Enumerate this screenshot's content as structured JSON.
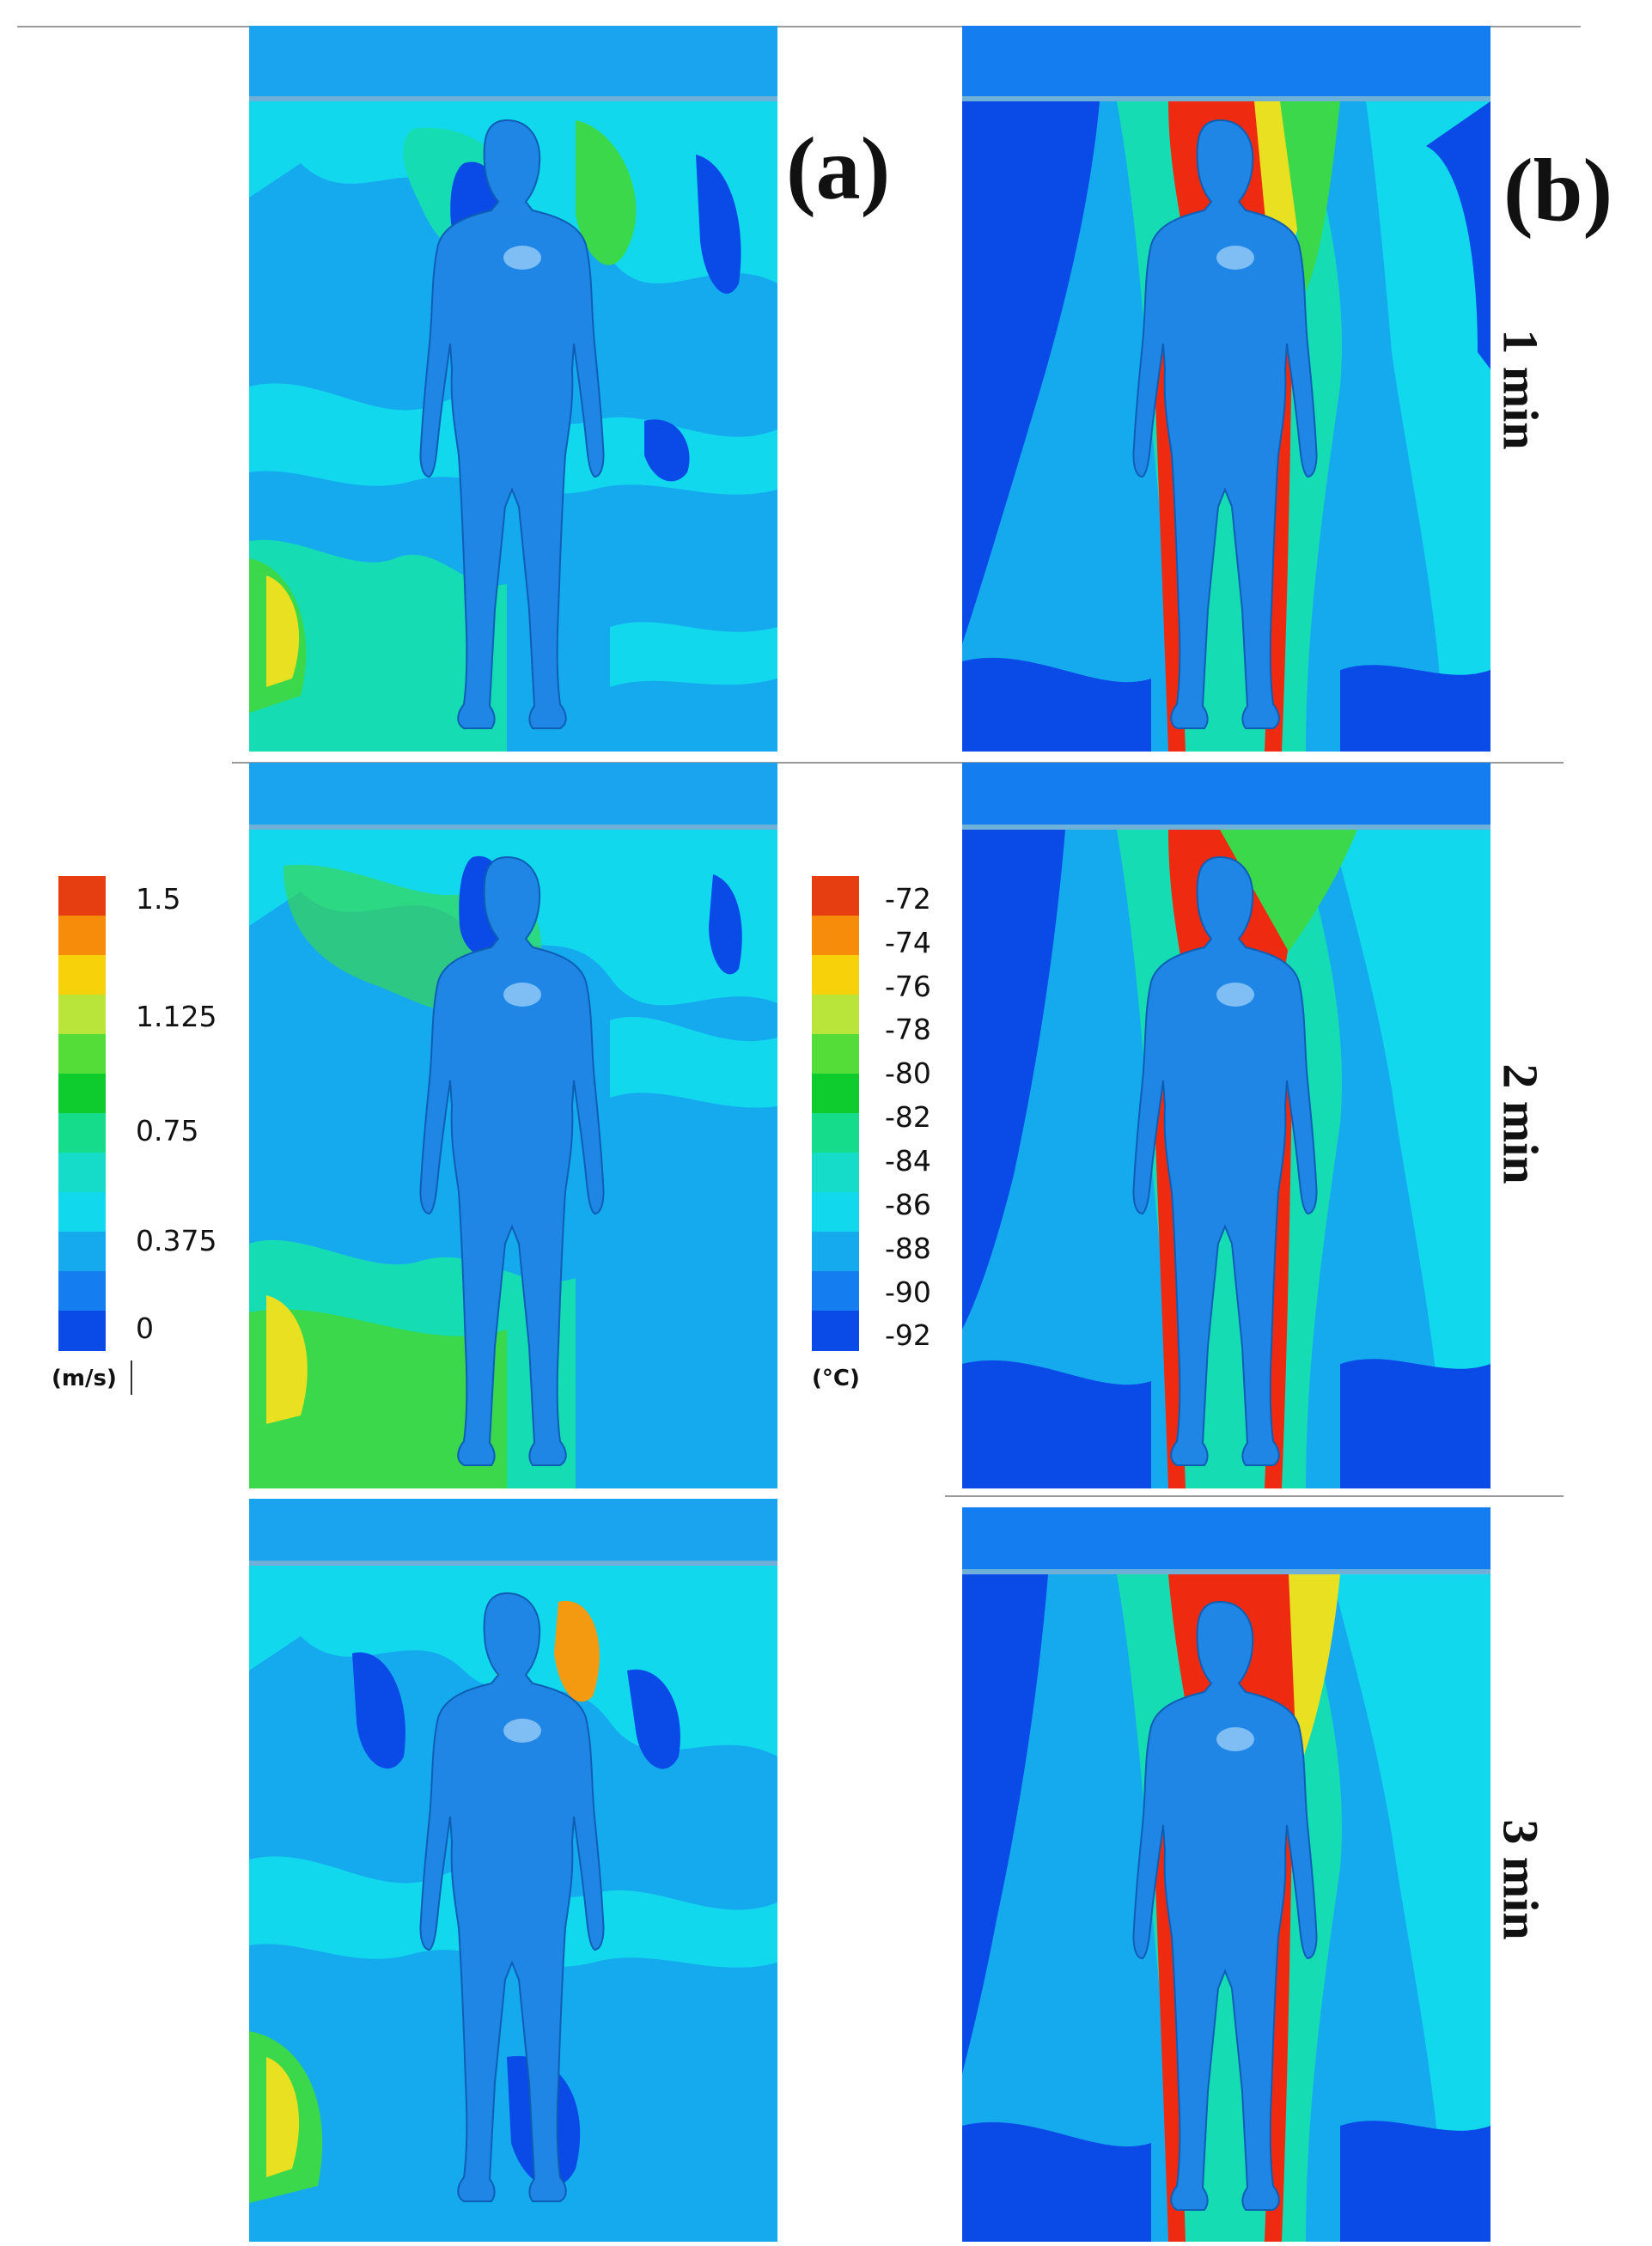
{
  "panel_labels": {
    "a": "(a)",
    "b": "(b)"
  },
  "time_labels": [
    "1 min",
    "2 min",
    "3 min"
  ],
  "velocity_legend": {
    "unit": "(m/s)",
    "tick_labels": [
      "1.5",
      "1.125",
      "0.75",
      "0.375",
      "0"
    ],
    "colors": [
      "#e63e10",
      "#f68c0a",
      "#f7d20a",
      "#b9e43a",
      "#54dd39",
      "#0fcc2e",
      "#14dc8a",
      "#14dcc8",
      "#12d8ee",
      "#15aaee",
      "#147df0",
      "#0a4ae6"
    ]
  },
  "temperature_legend": {
    "unit": "(°C)",
    "tick_labels": [
      "-72",
      "-74",
      "-76",
      "-78",
      "-80",
      "-82",
      "-84",
      "-86",
      "-88",
      "-90",
      "-92"
    ],
    "colors": [
      "#e63e10",
      "#f68c0a",
      "#f7d20a",
      "#b9e43a",
      "#54dd39",
      "#0fcc2e",
      "#14dc8a",
      "#14dcc8",
      "#12d8ee",
      "#15aaee",
      "#147df0",
      "#0a4ae6"
    ]
  },
  "palette": {
    "figure": "#1f86e6",
    "dark_blue": "#0a4ae6",
    "mid_blue": "#1aa3ee",
    "cyan": "#11d6ee",
    "teal": "#16dcb4",
    "green": "#3ad84a",
    "yellow": "#e8e020",
    "orange": "#f39a10",
    "red": "#ee2a10"
  }
}
